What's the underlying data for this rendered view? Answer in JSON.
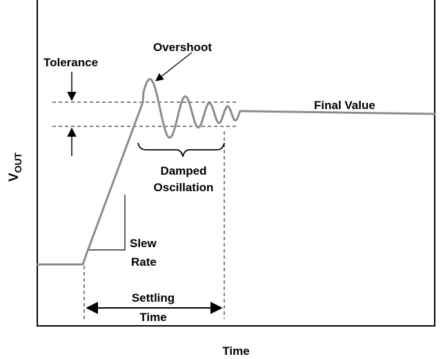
{
  "diagram": {
    "y_axis_label": {
      "main": "V",
      "subscript": "OUT"
    },
    "x_axis_label": "Time",
    "labels": {
      "tolerance": "Tolerance",
      "overshoot": "Overshoot",
      "final_value": "Final Value",
      "damped_line1": "Damped",
      "damped_line2": "Oscillation",
      "slew_line1": "Slew",
      "slew_line2": "Rate",
      "settling_line1": "Settling",
      "settling_line2": "Time"
    },
    "colors": {
      "waveform": "#8c8c8c",
      "ink": "#000000",
      "background": "#ffffff"
    }
  }
}
